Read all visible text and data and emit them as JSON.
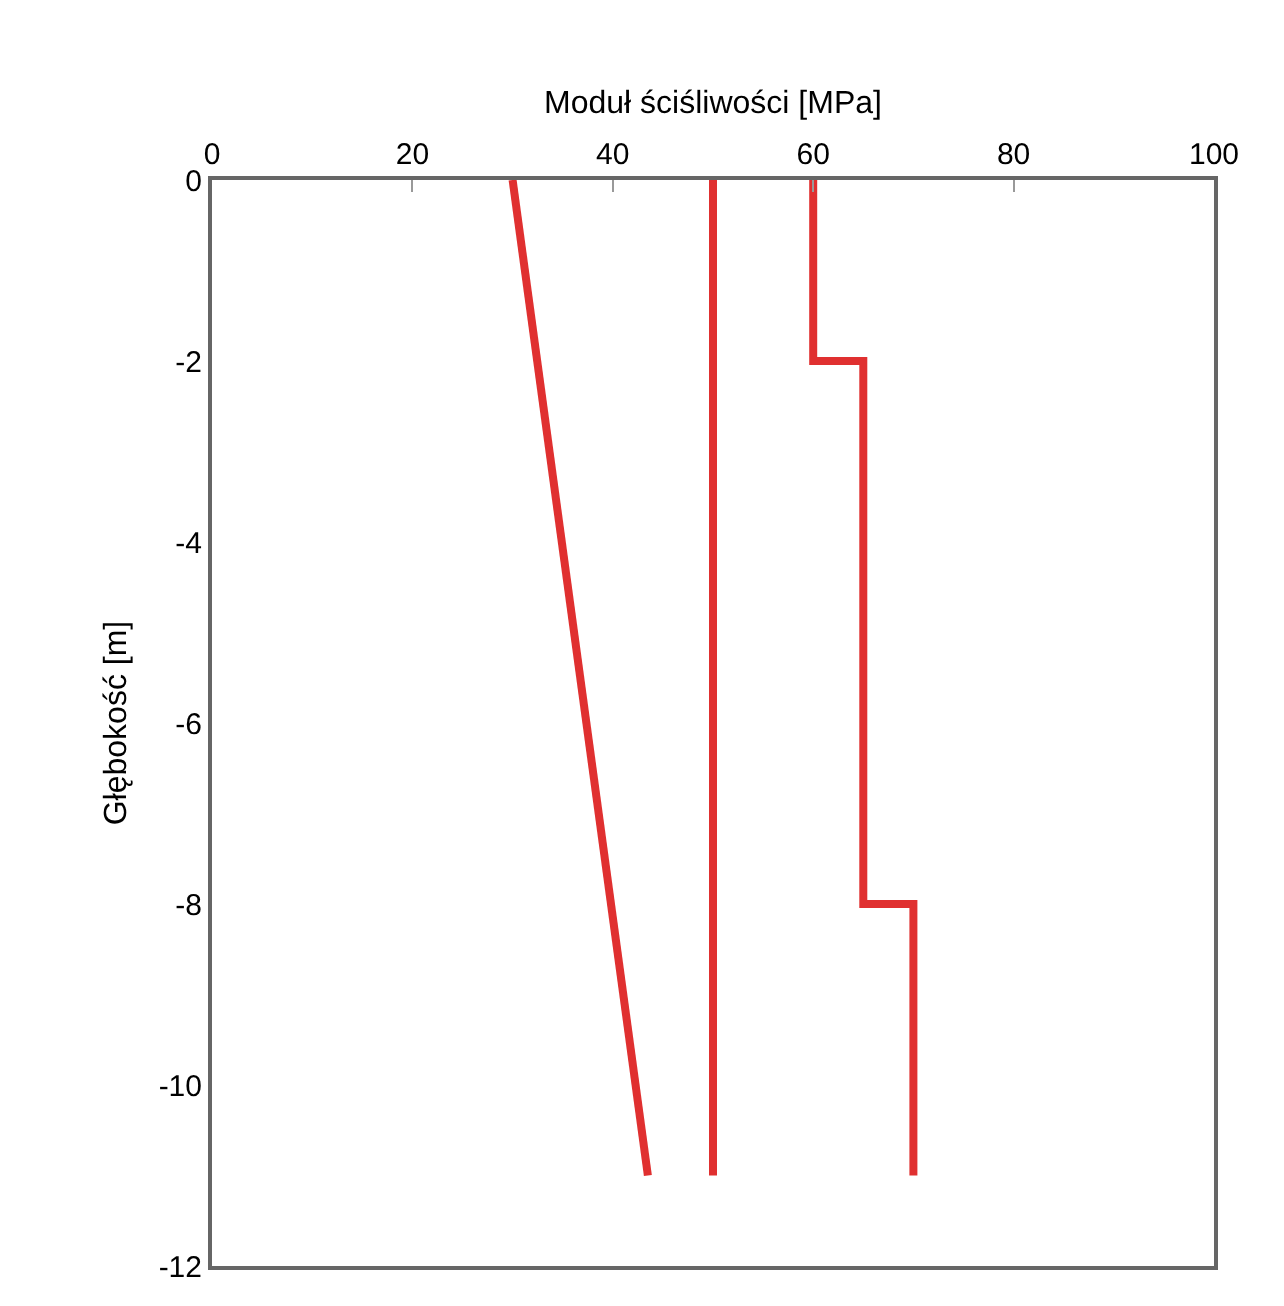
{
  "chart_data": {
    "type": "line",
    "xlabel": "Moduł ściśliwości [MPa]",
    "ylabel": "Głębokość [m]",
    "xlim": [
      0,
      100
    ],
    "xticks": [
      0,
      20,
      40,
      60,
      80,
      100
    ],
    "ylim": [
      -12,
      0
    ],
    "yticks": [
      0,
      -2,
      -4,
      -6,
      -8,
      -10,
      -12
    ],
    "marker": "none",
    "line_style": "solid",
    "series": [
      {
        "color": "#e03030",
        "x": [
          30,
          43.5
        ],
        "values": [
          0,
          -11
        ]
      },
      {
        "color": "#e03030",
        "x": [
          50,
          50
        ],
        "values": [
          0,
          -11
        ]
      },
      {
        "color": "#e03030",
        "x": [
          60,
          60,
          65,
          65,
          70,
          70
        ],
        "values": [
          0,
          -2,
          -2,
          -8,
          -8,
          -11
        ]
      }
    ]
  }
}
